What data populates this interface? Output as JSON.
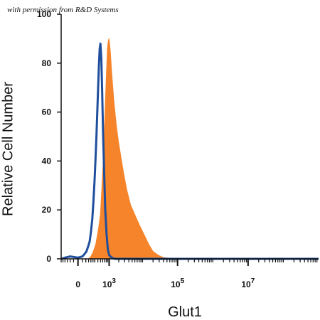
{
  "watermark": "with permission from R&D Systems",
  "chart_data": {
    "type": "area",
    "title": "",
    "xlabel": "Glut1",
    "ylabel": "Relative Cell Number",
    "x_scale": "log",
    "xlim": [
      -300,
      1000000000
    ],
    "ylim": [
      0,
      100
    ],
    "yticks": [
      0,
      20,
      40,
      60,
      80,
      100
    ],
    "xticks": [
      {
        "value": 0,
        "base": "0",
        "exp": ""
      },
      {
        "value": 1000,
        "base": "10",
        "exp": "3"
      },
      {
        "value": 100000,
        "base": "10",
        "exp": "5"
      },
      {
        "value": 10000000,
        "base": "10",
        "exp": "7"
      }
    ],
    "grid": false,
    "series": [
      {
        "style": "filled",
        "color": "#f5842a",
        "x": [
          -300,
          150,
          200,
          260,
          330,
          420,
          500,
          560,
          620,
          680,
          740,
          790,
          840,
          880,
          930,
          980,
          1030,
          1100,
          1180,
          1270,
          1380,
          1520,
          1700,
          1950,
          2300,
          2800,
          3500,
          4500,
          6000,
          8000,
          11000,
          15000,
          20000,
          28000,
          40000,
          60000,
          100000,
          1000000,
          100000000,
          1000000000
        ],
        "y": [
          0,
          0,
          1,
          3,
          6,
          12,
          18,
          28,
          38,
          50,
          62,
          72,
          80,
          86,
          89,
          90,
          88,
          84,
          78,
          72,
          66,
          60,
          54,
          48,
          42,
          35,
          28,
          22,
          18,
          14,
          10,
          6,
          3,
          1.5,
          0.5,
          0.2,
          0,
          0,
          0,
          0
        ]
      },
      {
        "style": "outline",
        "color": "#1f4e9c",
        "x": [
          -300,
          -200,
          -100,
          0,
          50,
          80,
          110,
          140,
          170,
          200,
          230,
          260,
          290,
          320,
          350,
          380,
          410,
          440,
          470,
          500,
          540,
          580,
          620,
          680,
          740,
          820,
          900,
          1000,
          1200,
          1500,
          10000,
          1000000,
          1000000000
        ],
        "y": [
          0,
          0.5,
          1,
          0.5,
          1,
          2,
          3,
          5,
          7,
          11,
          16,
          23,
          31,
          40,
          50,
          60,
          70,
          79,
          86,
          88,
          82,
          68,
          52,
          35,
          20,
          10,
          4,
          1.5,
          0.5,
          0,
          0,
          0,
          0
        ]
      }
    ]
  }
}
